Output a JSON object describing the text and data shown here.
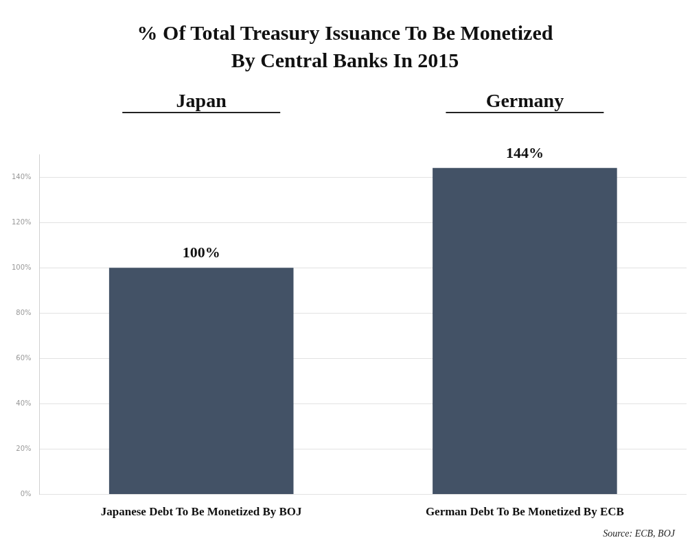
{
  "chart_data": {
    "type": "bar",
    "title": "% Of Total Treasury Issuance To Be Monetized By Central Banks In 2015",
    "categories": [
      "Japanese Debt To Be Monetized By BOJ",
      "German Debt To Be Monetized By ECB"
    ],
    "values": [
      100,
      144
    ],
    "color": "#435266",
    "value_labels": [
      "100%",
      "144%"
    ],
    "ylim": [
      0,
      150
    ],
    "yticks": [
      {
        "value": 0,
        "label": "0%"
      },
      {
        "value": 20,
        "label": "20%"
      },
      {
        "value": 40,
        "label": "40%"
      },
      {
        "value": 60,
        "label": "60%"
      },
      {
        "value": 80,
        "label": "80%"
      },
      {
        "value": 100,
        "label": "100%"
      },
      {
        "value": 120,
        "label": "120%"
      },
      {
        "value": 140,
        "label": "140%"
      }
    ],
    "grid": "y",
    "legend": false,
    "annotations": [
      "Japan",
      "Germany",
      "Source: ECB, BOJ"
    ]
  }
}
